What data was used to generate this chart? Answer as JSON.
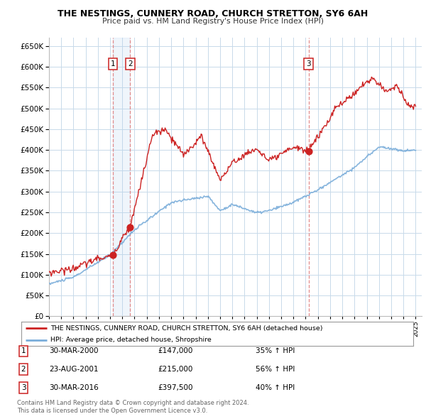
{
  "title": "THE NESTINGS, CUNNERY ROAD, CHURCH STRETTON, SY6 6AH",
  "subtitle": "Price paid vs. HM Land Registry's House Price Index (HPI)",
  "legend_line1": "THE NESTINGS, CUNNERY ROAD, CHURCH STRETTON, SY6 6AH (detached house)",
  "legend_line2": "HPI: Average price, detached house, Shropshire",
  "footer1": "Contains HM Land Registry data © Crown copyright and database right 2024.",
  "footer2": "This data is licensed under the Open Government Licence v3.0.",
  "transactions": [
    {
      "num": 1,
      "date": "30-MAR-2000",
      "price": 147000,
      "change": "35% ↑ HPI",
      "year": 2000.24
    },
    {
      "num": 2,
      "date": "23-AUG-2001",
      "price": 215000,
      "change": "56% ↑ HPI",
      "year": 2001.64
    },
    {
      "num": 3,
      "date": "30-MAR-2016",
      "price": 397500,
      "change": "40% ↑ HPI",
      "year": 2016.24
    }
  ],
  "hpi_color": "#7aadda",
  "price_color": "#cc2222",
  "vline_color": "#e08080",
  "background_color": "#ffffff",
  "plot_bg_color": "#ffffff",
  "grid_color": "#c8daea",
  "ylim": [
    0,
    670000
  ],
  "xlim_start": 1995,
  "xlim_end": 2025.5
}
